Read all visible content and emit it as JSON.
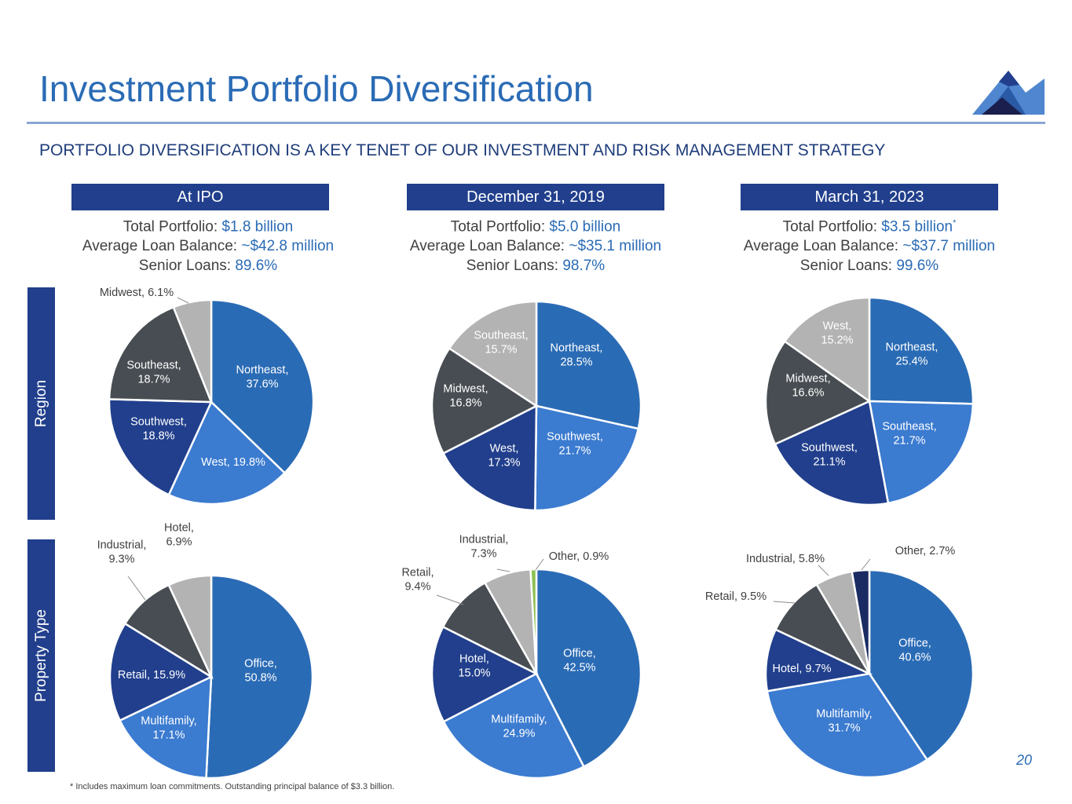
{
  "page": {
    "title": "Investment Portfolio Diversification",
    "subtitle": "PORTFOLIO DIVERSIFICATION IS A KEY TENET OF OUR INVESTMENT AND RISK MANAGEMENT STRATEGY",
    "footnote": "* Includes maximum loan commitments. Outstanding principal balance of $3.3 billion.",
    "page_number": "20",
    "row_labels": {
      "region": "Region",
      "property_type": "Property Type"
    }
  },
  "columns": [
    {
      "header": "At IPO",
      "total_label": "Total Portfolio: ",
      "total_value": "$1.8 billion",
      "total_note": "",
      "avg_label": "Average Loan Balance: ",
      "avg_value": "~$42.8 million",
      "senior_label": "Senior Loans: ",
      "senior_value": "89.6%"
    },
    {
      "header": "December 31, 2019",
      "total_label": "Total Portfolio: ",
      "total_value": "$5.0 billion",
      "total_note": "",
      "avg_label": "Average Loan Balance: ",
      "avg_value": "~$35.1 million",
      "senior_label": "Senior Loans: ",
      "senior_value": "98.7%"
    },
    {
      "header": "March 31, 2023",
      "total_label": "Total Portfolio: ",
      "total_value": "$3.5 billion",
      "total_note": "*",
      "avg_label": "Average Loan Balance: ",
      "avg_value": "~$37.7 million",
      "senior_label": "Senior Loans: ",
      "senior_value": "99.6%"
    }
  ],
  "colors": {
    "primary": "#2a6bb5",
    "navy": "#213f8c",
    "mid_blue": "#3b7bd0",
    "dark_gray": "#474d52",
    "light_gray": "#b3b3b3",
    "green": "#8cc152",
    "dark_navy": "#1a2b63"
  },
  "chart_data": [
    {
      "type": "pie",
      "group": "Region",
      "column": "At IPO",
      "slices": [
        {
          "label": "Northeast",
          "value": 37.6,
          "color": "#2a6bb5",
          "text": [
            "Northeast,",
            "37.6%"
          ]
        },
        {
          "label": "West",
          "value": 19.8,
          "color": "#3b7bd0",
          "text": [
            "West, 19.8%"
          ]
        },
        {
          "label": "Southwest",
          "value": 18.8,
          "color": "#213f8c",
          "text": [
            "Southwest,",
            "18.8%"
          ]
        },
        {
          "label": "Southeast",
          "value": 18.7,
          "color": "#474d52",
          "text": [
            "Southeast,",
            "18.7%"
          ]
        },
        {
          "label": "Midwest",
          "value": 6.1,
          "color": "#b3b3b3",
          "text": [
            "Midwest, 6.1%"
          ]
        }
      ]
    },
    {
      "type": "pie",
      "group": "Region",
      "column": "December 31, 2019",
      "slices": [
        {
          "label": "Northeast",
          "value": 28.5,
          "color": "#2a6bb5",
          "text": [
            "Northeast,",
            "28.5%"
          ]
        },
        {
          "label": "Southwest",
          "value": 21.7,
          "color": "#3b7bd0",
          "text": [
            "Southwest,",
            "21.7%"
          ]
        },
        {
          "label": "West",
          "value": 17.3,
          "color": "#213f8c",
          "text": [
            "West,",
            "17.3%"
          ]
        },
        {
          "label": "Midwest",
          "value": 16.8,
          "color": "#474d52",
          "text": [
            "Midwest,",
            "16.8%"
          ]
        },
        {
          "label": "Southeast",
          "value": 15.7,
          "color": "#b3b3b3",
          "text": [
            "Southeast,",
            "15.7%"
          ]
        }
      ]
    },
    {
      "type": "pie",
      "group": "Region",
      "column": "March 31, 2023",
      "slices": [
        {
          "label": "Northeast",
          "value": 25.4,
          "color": "#2a6bb5",
          "text": [
            "Northeast,",
            "25.4%"
          ]
        },
        {
          "label": "Southeast",
          "value": 21.7,
          "color": "#3b7bd0",
          "text": [
            "Southeast,",
            "21.7%"
          ]
        },
        {
          "label": "Southwest",
          "value": 21.1,
          "color": "#213f8c",
          "text": [
            "Southwest,",
            "21.1%"
          ]
        },
        {
          "label": "Midwest",
          "value": 16.6,
          "color": "#474d52",
          "text": [
            "Midwest,",
            "16.6%"
          ]
        },
        {
          "label": "West",
          "value": 15.2,
          "color": "#b3b3b3",
          "text": [
            "West,",
            "15.2%"
          ]
        }
      ]
    },
    {
      "type": "pie",
      "group": "Property Type",
      "column": "At IPO",
      "slices": [
        {
          "label": "Office",
          "value": 50.8,
          "color": "#2a6bb5",
          "text": [
            "Office,",
            "50.8%"
          ]
        },
        {
          "label": "Multifamily",
          "value": 17.1,
          "color": "#3b7bd0",
          "text": [
            "Multifamily,",
            "17.1%"
          ]
        },
        {
          "label": "Retail",
          "value": 15.9,
          "color": "#213f8c",
          "text": [
            "Retail, 15.9%"
          ]
        },
        {
          "label": "Industrial",
          "value": 9.3,
          "color": "#474d52",
          "text": [
            "Industrial,",
            "9.3%"
          ]
        },
        {
          "label": "Hotel",
          "value": 6.9,
          "color": "#b3b3b3",
          "text": [
            "Hotel,",
            "6.9%"
          ]
        }
      ]
    },
    {
      "type": "pie",
      "group": "Property Type",
      "column": "December 31, 2019",
      "slices": [
        {
          "label": "Office",
          "value": 42.5,
          "color": "#2a6bb5",
          "text": [
            "Office,",
            "42.5%"
          ]
        },
        {
          "label": "Multifamily",
          "value": 24.9,
          "color": "#3b7bd0",
          "text": [
            "Multifamily,",
            "24.9%"
          ]
        },
        {
          "label": "Hotel",
          "value": 15.0,
          "color": "#213f8c",
          "text": [
            "Hotel,",
            "15.0%"
          ]
        },
        {
          "label": "Retail",
          "value": 9.4,
          "color": "#474d52",
          "text": [
            "Retail,",
            "9.4%"
          ]
        },
        {
          "label": "Industrial",
          "value": 7.3,
          "color": "#b3b3b3",
          "text": [
            "Industrial,",
            "7.3%"
          ]
        },
        {
          "label": "Other",
          "value": 0.9,
          "color": "#8cc152",
          "text": [
            "Other, 0.9%"
          ]
        }
      ]
    },
    {
      "type": "pie",
      "group": "Property Type",
      "column": "March 31, 2023",
      "slices": [
        {
          "label": "Office",
          "value": 40.6,
          "color": "#2a6bb5",
          "text": [
            "Office,",
            "40.6%"
          ]
        },
        {
          "label": "Multifamily",
          "value": 31.7,
          "color": "#3b7bd0",
          "text": [
            "Multifamily,",
            "31.7%"
          ]
        },
        {
          "label": "Hotel",
          "value": 9.7,
          "color": "#213f8c",
          "text": [
            "Hotel, 9.7%"
          ]
        },
        {
          "label": "Retail",
          "value": 9.5,
          "color": "#474d52",
          "text": [
            "Retail, 9.5%"
          ]
        },
        {
          "label": "Industrial",
          "value": 5.8,
          "color": "#b3b3b3",
          "text": [
            "Industrial, 5.8%"
          ]
        },
        {
          "label": "Other",
          "value": 2.7,
          "color": "#1a2b63",
          "text": [
            "Other, 2.7%"
          ]
        }
      ]
    }
  ]
}
